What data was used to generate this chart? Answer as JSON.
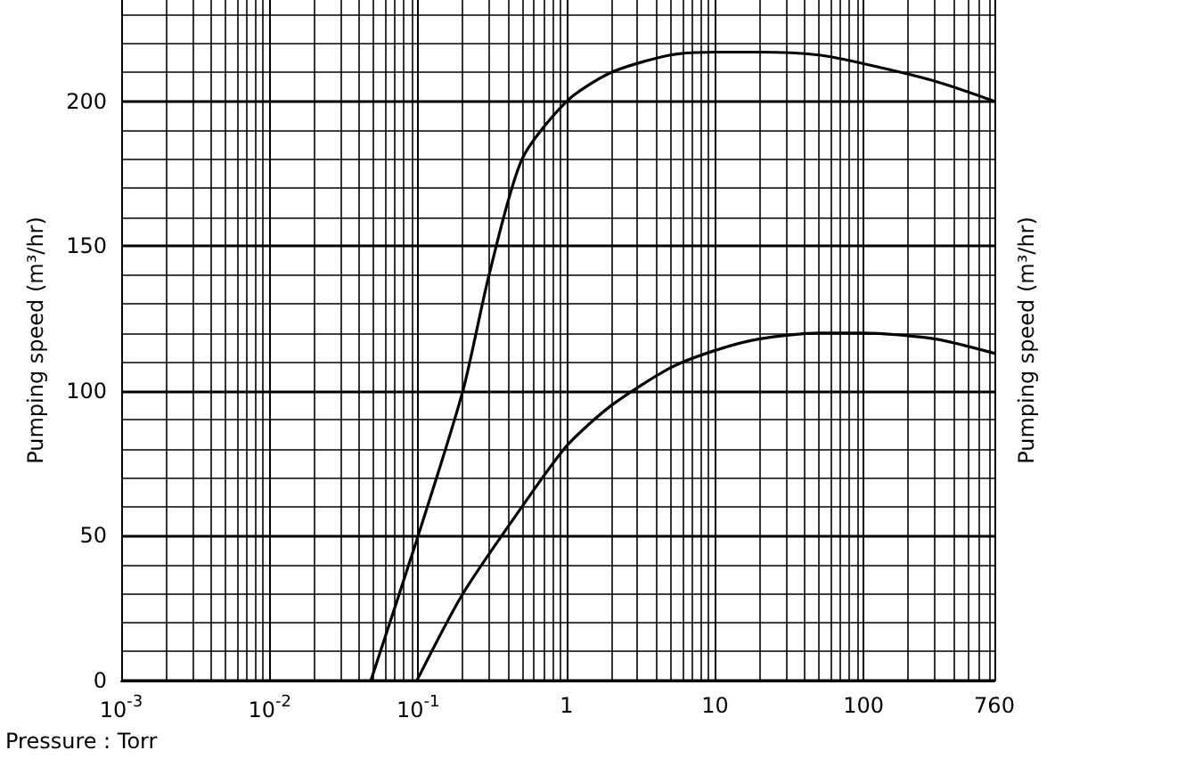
{
  "chart_data": {
    "type": "line",
    "xlabel": "Pressure : Torr",
    "ylabel": "Pumping speed (m³/hr)",
    "y2label": "Pumping speed (m³/hr)",
    "log": "x",
    "grid": true,
    "marker": "none",
    "line_style": "solid",
    "xlim": [
      0.001,
      760
    ],
    "xticks": [
      {
        "value": 0.001,
        "label": "10$^{-3}$"
      },
      {
        "value": 0.01,
        "label": "10$^{-2}$"
      },
      {
        "value": 0.1,
        "label": "10$^{-1}$"
      },
      1,
      10,
      100,
      760
    ],
    "ylim": [
      0,
      235
    ],
    "yticks": [
      0,
      50,
      100,
      150,
      200
    ],
    "series": [
      {
        "color": "#000000",
        "x": [
          0.048,
          0.1,
          0.2,
          0.3,
          0.5,
          1,
          2,
          5,
          10,
          20,
          50,
          100,
          300,
          760
        ],
        "values": [
          0,
          50,
          100,
          140,
          180,
          200,
          210,
          216,
          217,
          217,
          216,
          213,
          207,
          200
        ]
      },
      {
        "color": "#000000",
        "x": [
          0.098,
          0.2,
          0.5,
          1,
          2,
          5,
          10,
          20,
          50,
          100,
          300,
          760
        ],
        "values": [
          0,
          30,
          60,
          81,
          95,
          108,
          114,
          118,
          120,
          120,
          118,
          113
        ]
      }
    ]
  }
}
